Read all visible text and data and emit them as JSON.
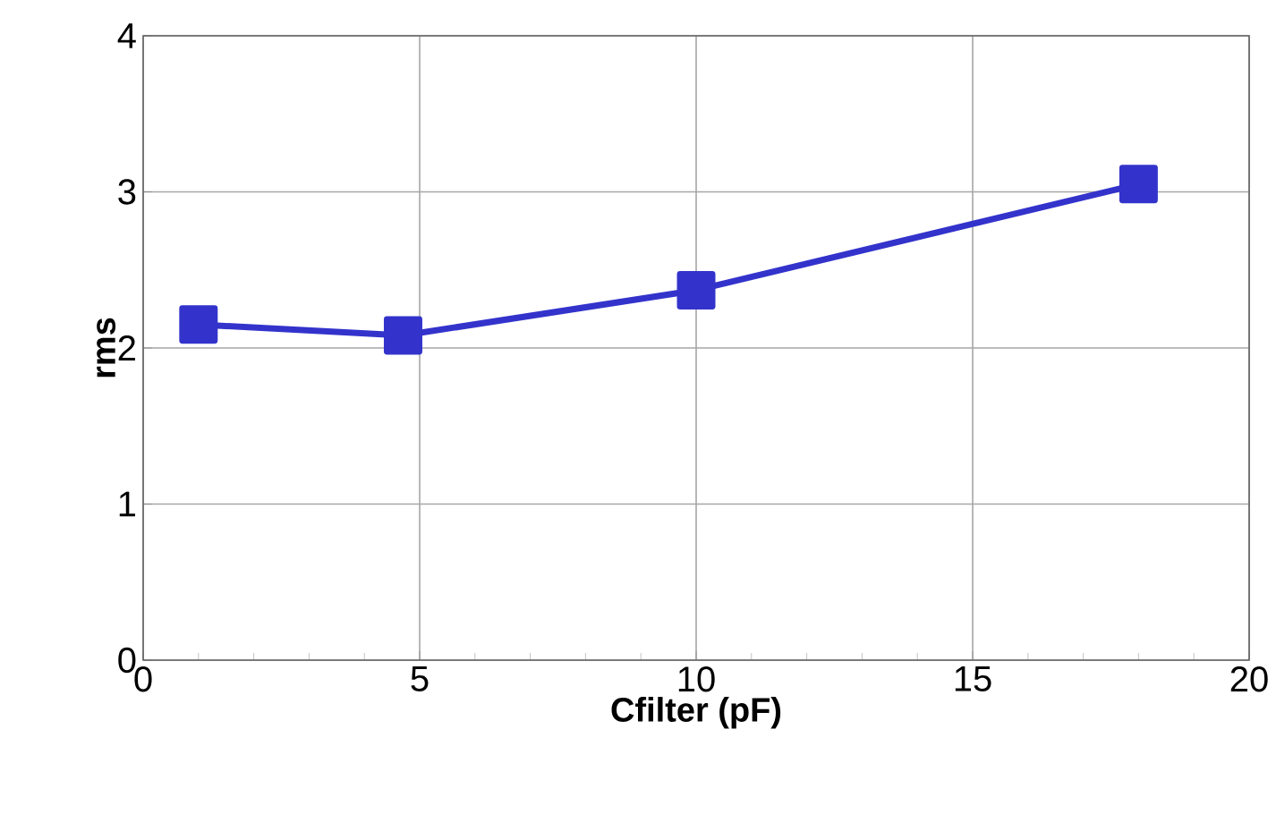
{
  "chart_data": {
    "type": "line",
    "xlabel": "Cfilter (pF)",
    "ylabel": "rms",
    "x": [
      1,
      4.7,
      10,
      18
    ],
    "values": [
      2.15,
      2.08,
      2.37,
      3.05
    ],
    "color": "#3333cc",
    "xlim": [
      0,
      20
    ],
    "ylim": [
      0,
      4
    ],
    "xticks": [
      0,
      5,
      10,
      15,
      20
    ],
    "yticks": [
      0,
      1,
      2,
      3,
      4
    ],
    "grid": true,
    "marker": "square",
    "line_style": "solid"
  }
}
